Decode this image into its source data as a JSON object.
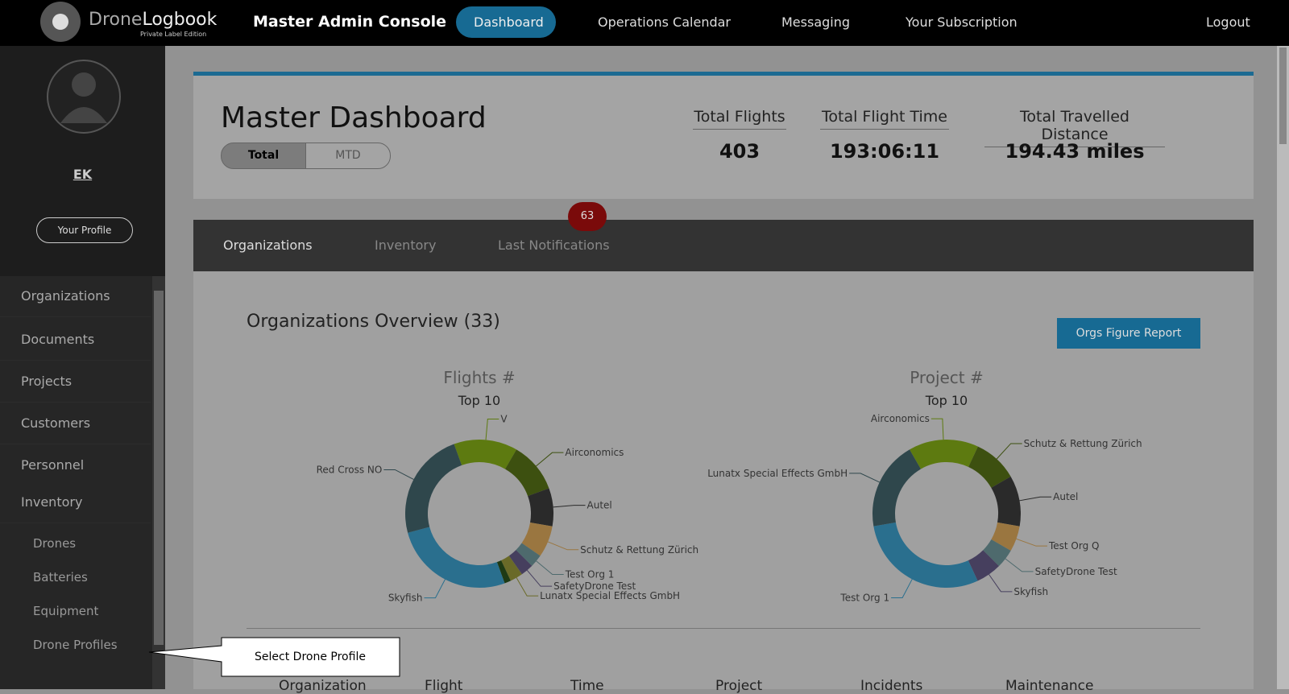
{
  "nav": {
    "brand_a": "Drone",
    "brand_b": "Logbook",
    "edition": "Private Label Edition",
    "console": "Master Admin Console",
    "items": [
      "Dashboard",
      "Operations Calendar",
      "Messaging",
      "Your Subscription"
    ],
    "logout": "Logout"
  },
  "sidebar": {
    "user": "EK",
    "profile_button": "Your Profile",
    "menu": [
      "Organizations",
      "Documents",
      "Projects",
      "Customers",
      "Personnel",
      "Inventory"
    ],
    "submenu": [
      "Drones",
      "Batteries",
      "Equipment",
      "Drone Profiles"
    ]
  },
  "callout": "Select Drone Profile",
  "dashboard": {
    "title": "Master Dashboard",
    "toggle": [
      "Total",
      "MTD"
    ],
    "stats": [
      {
        "label": "Total Flights",
        "value": "403"
      },
      {
        "label": "Total Flight Time",
        "value": "193:06:11"
      },
      {
        "label": "Total Travelled Distance",
        "value": "194.43 miles"
      }
    ]
  },
  "tabs": {
    "items": [
      "Organizations",
      "Inventory",
      "Last Notifications"
    ],
    "badge": 63
  },
  "overview": {
    "title": "Organizations Overview (33)",
    "button": "Orgs Figure Report"
  },
  "chart_data": [
    {
      "type": "donut",
      "title": "Flights #",
      "subtitle": "Top 10",
      "categories": [
        "V",
        "Airconomics",
        "Autel",
        "Schutz & Rettung Zürich",
        "Test Org 1",
        "SafetyDrone Test",
        "Lunatx Special Effects GmbH",
        null,
        "Skyfish",
        "Red Cross NO"
      ],
      "values": [
        13.9,
        11.1,
        8.3,
        6.9,
        2.8,
        2.8,
        2.8,
        1.4,
        26.4,
        23.6
      ],
      "colors": [
        "#5d7a10",
        "#3d5010",
        "#2a2a2a",
        "#9a7640",
        "#4e6a6d",
        "#463f5e",
        "#6a6a28",
        "#1e3a14",
        "#2a6f8e",
        "#2f474c"
      ]
    },
    {
      "type": "donut",
      "title": "Project #",
      "subtitle": "Top 10",
      "categories": [
        "Airconomics",
        "Schutz & Rettung Zürich",
        "Autel",
        "Test Org Q",
        "SafetyDrone Test",
        "Skyfish",
        "Test Org 1",
        "Lunatx Special Effects GmbH"
      ],
      "values": [
        15.3,
        9.7,
        11.1,
        5.6,
        4.2,
        5.6,
        29.2,
        19.4
      ],
      "colors": [
        "#5d7a10",
        "#3d5010",
        "#2a2a2a",
        "#9a7640",
        "#4e6a6d",
        "#463f5e",
        "#2a6f8e",
        "#2f474c"
      ]
    }
  ],
  "table_headers": [
    "Organization",
    "Flight",
    "Time",
    "Project",
    "Incidents",
    "Maintenance"
  ]
}
